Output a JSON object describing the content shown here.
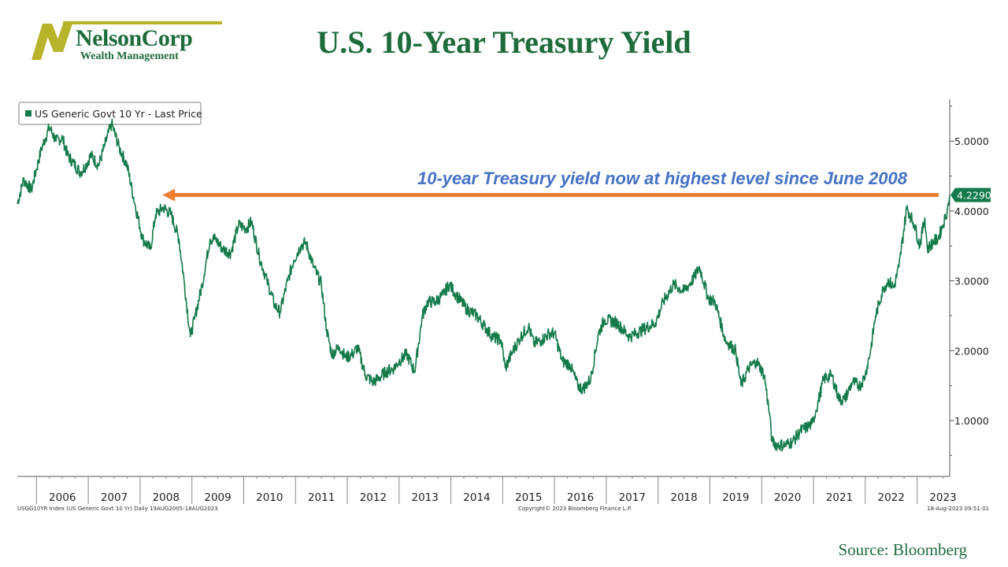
{
  "header": {
    "logo_name": "NelsonCorp",
    "logo_sub": "Wealth Management",
    "title": "U.S. 10-Year Treasury Yield"
  },
  "colors": {
    "series": "#137a4a",
    "annotation_text": "#4472c4",
    "arrow": "#ed7d31",
    "title": "#1e6b3c",
    "logo_accent": "#b7b32a"
  },
  "chart_data": {
    "type": "line",
    "title": "U.S. 10-Year Treasury Yield",
    "legend": "US Generic Govt 10 Yr - Last Price",
    "legend_placement": "top-left",
    "yaxis_side": "right",
    "ylim": [
      0.2,
      5.6
    ],
    "yticks": [
      "1.0000",
      "2.0000",
      "3.0000",
      "4.0000",
      "5.0000"
    ],
    "xlim": [
      2005.63,
      2023.63
    ],
    "xticks": [
      "2006",
      "2007",
      "2008",
      "2009",
      "2010",
      "2011",
      "2012",
      "2013",
      "2014",
      "2015",
      "2016",
      "2017",
      "2018",
      "2019",
      "2020",
      "2021",
      "2022",
      "2023"
    ],
    "last_value": "4.2290",
    "series": [
      {
        "x": [
          2005.63,
          2005.75,
          2005.9,
          2006.0,
          2006.1,
          2006.25,
          2006.38,
          2006.5,
          2006.6,
          2006.7,
          2006.85,
          2006.95,
          2007.05,
          2007.2,
          2007.3,
          2007.45,
          2007.6,
          2007.75,
          2007.9,
          2008.05,
          2008.2,
          2008.3,
          2008.45,
          2008.6,
          2008.75,
          2008.85,
          2008.97,
          2009.05,
          2009.2,
          2009.35,
          2009.45,
          2009.6,
          2009.75,
          2009.9,
          2010.05,
          2010.15,
          2010.3,
          2010.45,
          2010.6,
          2010.7,
          2010.85,
          2010.97,
          2011.1,
          2011.2,
          2011.35,
          2011.5,
          2011.6,
          2011.7,
          2011.85,
          2011.97,
          2012.1,
          2012.2,
          2012.35,
          2012.5,
          2012.6,
          2012.75,
          2012.9,
          2013.0,
          2013.15,
          2013.3,
          2013.45,
          2013.55,
          2013.7,
          2013.85,
          2013.97,
          2014.1,
          2014.3,
          2014.5,
          2014.65,
          2014.8,
          2014.97,
          2015.05,
          2015.2,
          2015.35,
          2015.5,
          2015.6,
          2015.75,
          2015.9,
          2016.0,
          2016.15,
          2016.3,
          2016.45,
          2016.55,
          2016.7,
          2016.85,
          2016.97,
          2017.2,
          2017.45,
          2017.7,
          2017.95,
          2018.1,
          2018.3,
          2018.5,
          2018.7,
          2018.8,
          2018.97,
          2019.1,
          2019.3,
          2019.5,
          2019.6,
          2019.75,
          2019.9,
          2020.05,
          2020.15,
          2020.2,
          2020.3,
          2020.45,
          2020.6,
          2020.75,
          2020.97,
          2021.05,
          2021.2,
          2021.35,
          2021.5,
          2021.6,
          2021.75,
          2021.9,
          2022.0,
          2022.1,
          2022.2,
          2022.35,
          2022.45,
          2022.55,
          2022.65,
          2022.8,
          2022.95,
          2023.05,
          2023.15,
          2023.2,
          2023.3,
          2023.4,
          2023.5,
          2023.58,
          2023.63
        ],
        "y": [
          4.1,
          4.45,
          4.3,
          4.6,
          4.9,
          5.2,
          5.0,
          5.05,
          4.8,
          4.7,
          4.55,
          4.65,
          4.8,
          4.65,
          4.9,
          5.25,
          4.9,
          4.65,
          4.1,
          3.6,
          3.45,
          3.95,
          4.05,
          3.95,
          3.6,
          3.0,
          2.2,
          2.45,
          2.95,
          3.6,
          3.6,
          3.45,
          3.4,
          3.8,
          3.75,
          3.85,
          3.35,
          3.0,
          2.65,
          2.55,
          3.0,
          3.3,
          3.5,
          3.55,
          3.2,
          2.95,
          2.3,
          1.95,
          2.05,
          1.9,
          1.95,
          2.05,
          1.65,
          1.55,
          1.6,
          1.7,
          1.75,
          1.85,
          1.95,
          1.7,
          2.5,
          2.7,
          2.7,
          2.8,
          2.95,
          2.8,
          2.6,
          2.5,
          2.35,
          2.2,
          2.15,
          1.75,
          2.0,
          2.2,
          2.35,
          2.1,
          2.15,
          2.25,
          2.25,
          1.85,
          1.8,
          1.5,
          1.45,
          1.6,
          2.25,
          2.45,
          2.4,
          2.2,
          2.3,
          2.4,
          2.7,
          2.95,
          2.85,
          3.05,
          3.2,
          2.75,
          2.7,
          2.15,
          2.0,
          1.5,
          1.75,
          1.85,
          1.65,
          1.1,
          0.7,
          0.65,
          0.65,
          0.7,
          0.85,
          0.95,
          1.15,
          1.6,
          1.65,
          1.3,
          1.3,
          1.55,
          1.5,
          1.65,
          2.0,
          2.5,
          2.9,
          3.0,
          2.9,
          3.2,
          4.05,
          3.8,
          3.5,
          3.9,
          3.45,
          3.55,
          3.6,
          3.8,
          4.0,
          4.229
        ]
      }
    ],
    "annotations": [
      {
        "text": "10-year Treasury yield now at highest level since June 2008",
        "arrow_from_x": 2023.63,
        "arrow_to_x": 2008.43,
        "arrow_y": 4.229
      }
    ]
  },
  "footer": {
    "ticker": "USGG10YR Index (US Generic Govt 10 Yr)  Daily 19AUG2005-18AUG2023",
    "copyright": "Copyright© 2023 Bloomberg Finance L.P.",
    "timestamp": "18-Aug-2023 09:51:01",
    "source": "Source:  Bloomberg"
  }
}
